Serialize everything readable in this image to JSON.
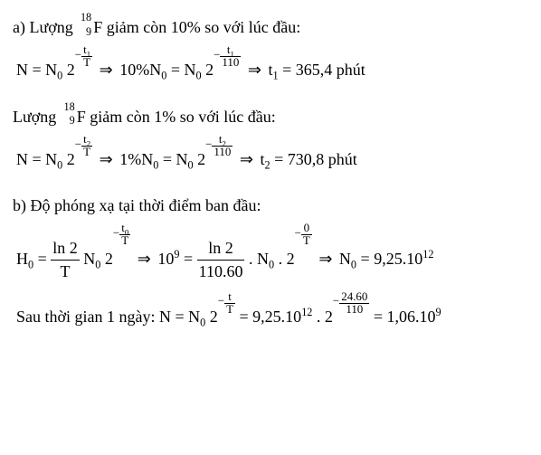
{
  "partA": {
    "intro_prefix": "a) Lượng ",
    "isotope_mass": "18",
    "isotope_atomic": "9",
    "isotope_sym": "F",
    "intro_suffix_10": " giảm còn 10% so với lúc đầu:",
    "eq10": {
      "N": "N",
      "eq": "=",
      "N0": "N",
      "sub0": "0",
      "two": "2",
      "neg": "−",
      "t1": "t",
      "t1_sub": "1",
      "T": "T",
      "arrow": "⇒",
      "tenpc": "10%N",
      "half_life": "110",
      "result": "t",
      "result_sub": "1",
      "result_val": "= 365,4 phút"
    },
    "intro_suffix_1": " giảm còn 1% so với lúc đầu:",
    "eq1": {
      "onepc": "1%N",
      "t2": "t",
      "t2_sub": "2",
      "result_sub": "2",
      "result_val": "= 730,8 phút"
    }
  },
  "partB": {
    "intro": "b) Độ phóng xạ tại thời điểm ban đầu:",
    "eqH0": {
      "H": "H",
      "sub0": "0",
      "eq": "=",
      "ln2": "ln 2",
      "T": "T",
      "N0": "N",
      "two": "2",
      "neg": "−",
      "t0": "t",
      "t0_sub": "0",
      "arrow": "⇒",
      "ten9": "10",
      "nine": "9",
      "Tval": "110.60",
      "dot": ".",
      "zero": "0",
      "result": "= 9,25.10",
      "result_exp": "12"
    },
    "final_prefix": "Sau thời gian 1 ngày:  ",
    "eqFinal": {
      "N": "N",
      "eq": "=",
      "N0": "N",
      "sub0": "0",
      "two": "2",
      "neg": "−",
      "t": "t",
      "T": "T",
      "val1": "= 9,25.10",
      "exp12": "12",
      "dot": ".",
      "exp_num": "24.60",
      "exp_den": "110",
      "result": "= 1,06.10",
      "exp9": "9"
    }
  }
}
